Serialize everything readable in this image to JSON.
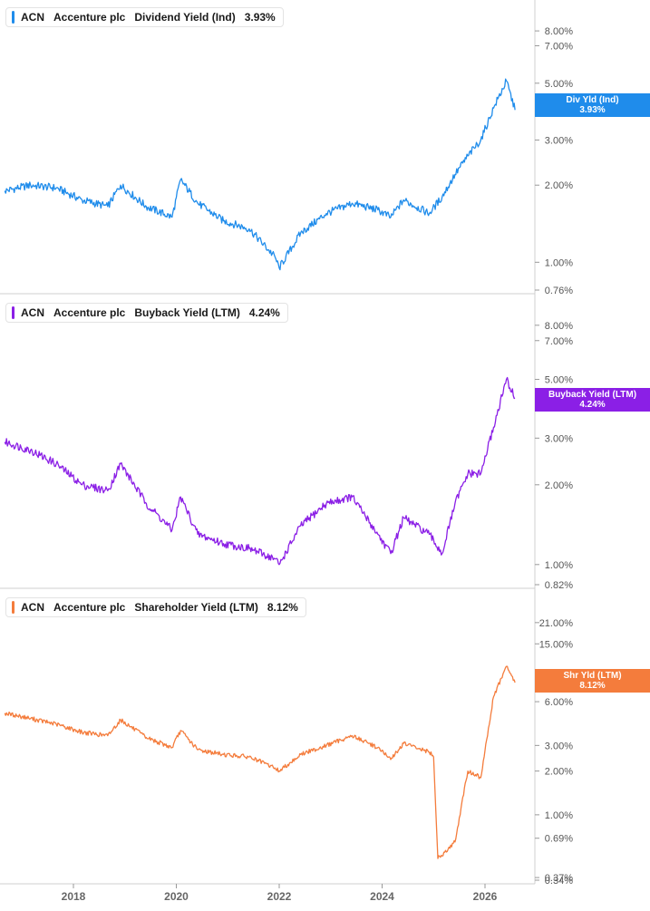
{
  "chart_data": [
    {
      "type": "line",
      "ticker": "ACN",
      "company": "Accenture plc",
      "title": "Dividend Yield (Ind)",
      "current_value": "3.93%",
      "color": "#1f8ceb",
      "flag_label": "Div Yld (Ind)",
      "flag_value": "3.93%",
      "y_scale": "log",
      "y_ticks": [
        "8.00%",
        "7.00%",
        "5.00%",
        "3.00%",
        "2.00%",
        "1.00%",
        "0.76%"
      ],
      "x": [
        "2016-09",
        "2017-03",
        "2017-09",
        "2018-03",
        "2018-09",
        "2018-12",
        "2019-06",
        "2019-12",
        "2020-02",
        "2020-06",
        "2020-12",
        "2021-06",
        "2021-12",
        "2022-01",
        "2022-06",
        "2022-12",
        "2023-06",
        "2023-12",
        "2024-03",
        "2024-06",
        "2024-12",
        "2025-03",
        "2025-06",
        "2025-09",
        "2025-12",
        "2026-03",
        "2026-06",
        "2026-08"
      ],
      "values": [
        1.9,
        2.0,
        1.95,
        1.75,
        1.65,
        2.0,
        1.65,
        1.5,
        2.1,
        1.7,
        1.45,
        1.35,
        1.05,
        0.95,
        1.3,
        1.55,
        1.7,
        1.6,
        1.5,
        1.75,
        1.55,
        1.8,
        2.2,
        2.6,
        3.0,
        4.0,
        5.1,
        3.93
      ]
    },
    {
      "type": "line",
      "ticker": "ACN",
      "company": "Accenture plc",
      "title": "Buyback Yield (LTM)",
      "current_value": "4.24%",
      "color": "#8b1fe6",
      "flag_label": "Buyback Yield (LTM)",
      "flag_value": "4.24%",
      "y_scale": "log",
      "y_ticks": [
        "8.00%",
        "7.00%",
        "5.00%",
        "3.00%",
        "2.00%",
        "1.00%",
        "0.82%"
      ],
      "x": [
        "2016-09",
        "2017-03",
        "2017-09",
        "2018-03",
        "2018-09",
        "2018-12",
        "2019-06",
        "2019-12",
        "2020-02",
        "2020-06",
        "2020-12",
        "2021-06",
        "2021-12",
        "2022-01",
        "2022-06",
        "2022-12",
        "2023-06",
        "2023-12",
        "2024-03",
        "2024-06",
        "2024-12",
        "2025-03",
        "2025-06",
        "2025-09",
        "2025-12",
        "2026-03",
        "2026-06",
        "2026-08"
      ],
      "values": [
        2.9,
        2.7,
        2.4,
        2.0,
        1.9,
        2.4,
        1.7,
        1.35,
        1.8,
        1.3,
        1.2,
        1.15,
        1.05,
        1.0,
        1.4,
        1.7,
        1.8,
        1.3,
        1.1,
        1.5,
        1.3,
        1.1,
        1.7,
        2.2,
        2.2,
        3.3,
        5.0,
        4.24
      ]
    },
    {
      "type": "line",
      "ticker": "ACN",
      "company": "Accenture plc",
      "title": "Shareholder Yield (LTM)",
      "current_value": "8.12%",
      "color": "#f47c3c",
      "flag_label": "Shr Yld (LTM)",
      "flag_value": "8.12%",
      "y_scale": "log",
      "y_ticks": [
        "21.00%",
        "15.00%",
        "8.12%",
        "6.00%",
        "3.00%",
        "2.00%",
        "1.00%",
        "0.69%",
        "0.37%",
        "0.34%"
      ],
      "x": [
        "2016-09",
        "2017-03",
        "2017-09",
        "2018-03",
        "2018-09",
        "2018-12",
        "2019-06",
        "2019-12",
        "2020-02",
        "2020-06",
        "2020-12",
        "2021-06",
        "2021-12",
        "2022-01",
        "2022-06",
        "2022-12",
        "2023-06",
        "2023-12",
        "2024-03",
        "2024-06",
        "2024-12",
        "2025-01",
        "2025-02",
        "2025-06",
        "2025-09",
        "2025-12",
        "2026-03",
        "2026-06",
        "2026-08"
      ],
      "values": [
        5.0,
        4.6,
        4.2,
        3.7,
        3.5,
        4.5,
        3.4,
        2.9,
        3.8,
        2.8,
        2.6,
        2.5,
        2.1,
        2.0,
        2.6,
        3.0,
        3.5,
        2.9,
        2.4,
        3.1,
        2.7,
        2.5,
        0.5,
        0.65,
        2.0,
        1.8,
        6.5,
        10.5,
        8.12
      ]
    }
  ],
  "x_axis_labels": [
    "2018",
    "2020",
    "2022",
    "2024",
    "2026"
  ]
}
